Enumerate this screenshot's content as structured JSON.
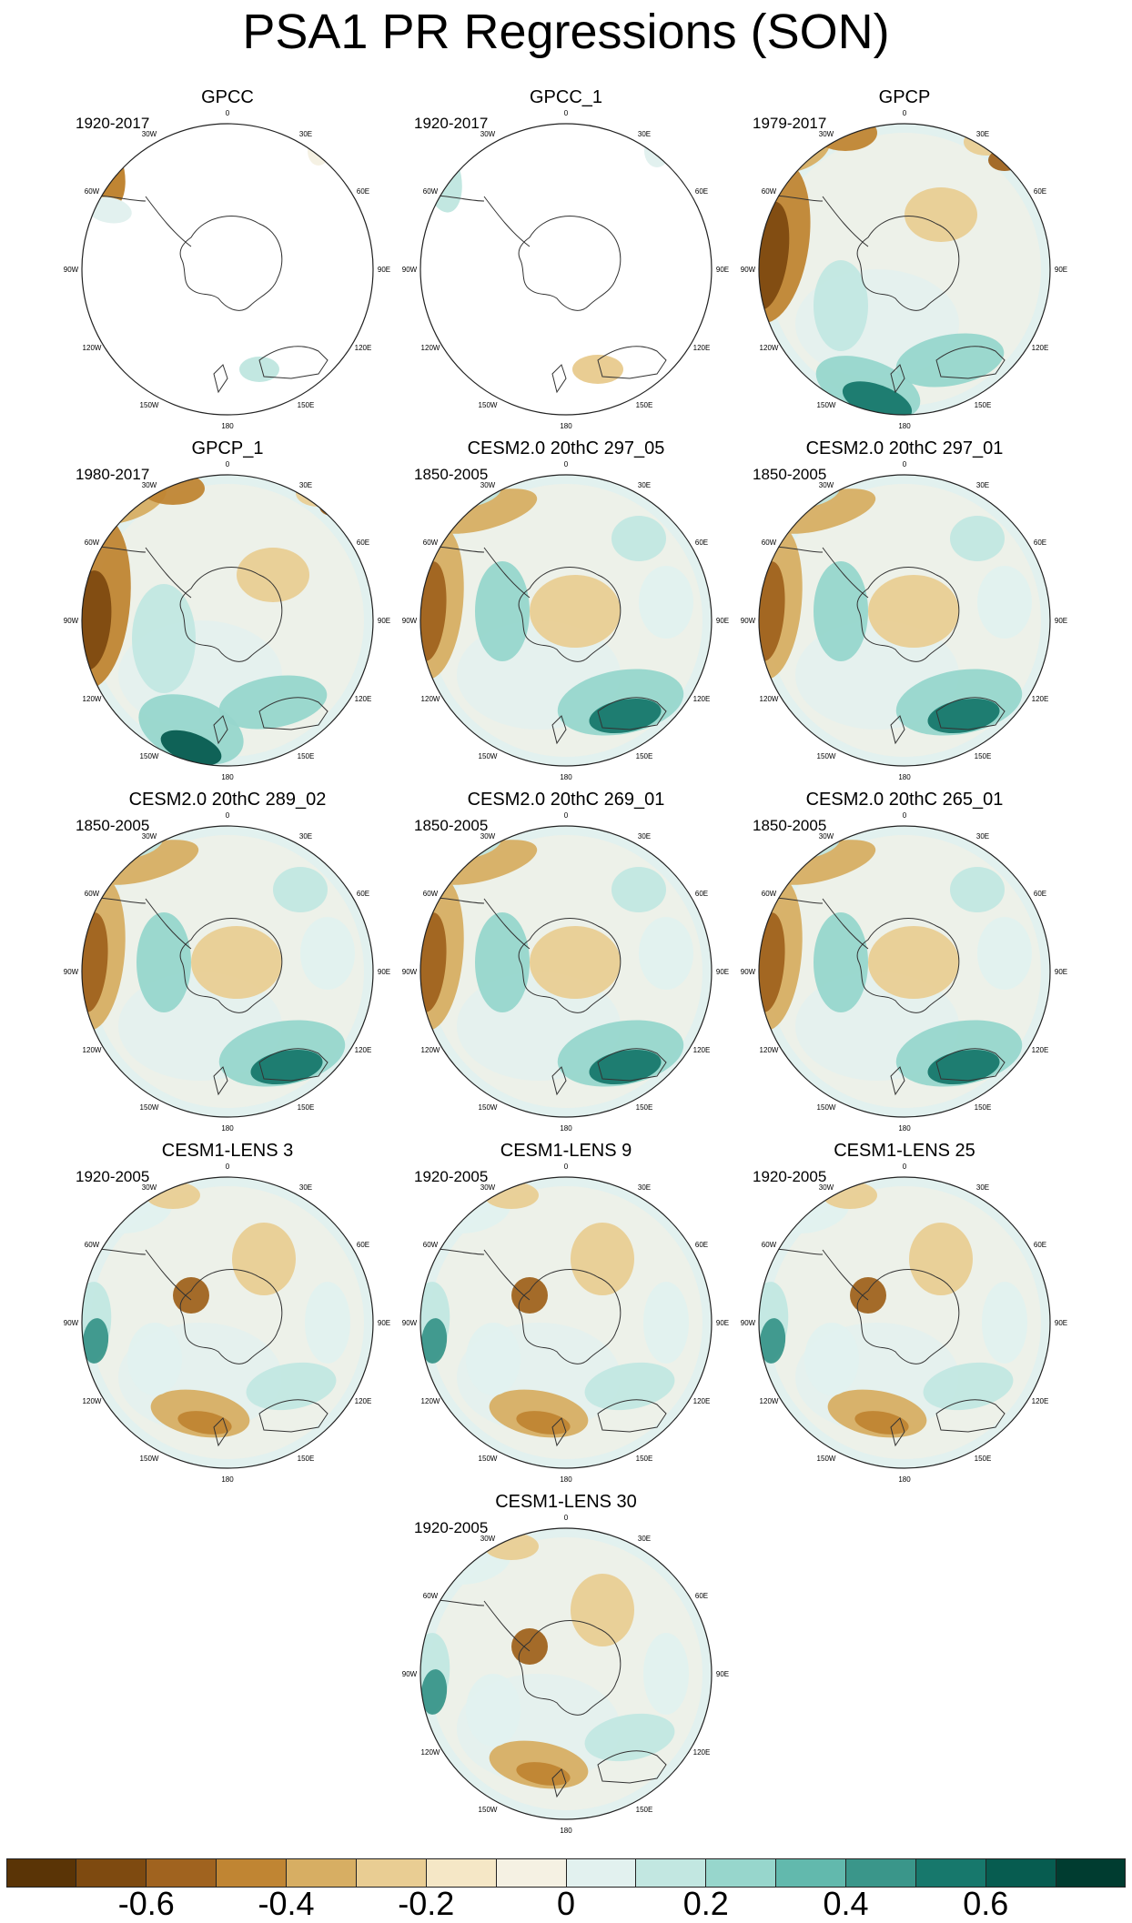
{
  "figure": {
    "title": "PSA1 PR Regressions (SON)"
  },
  "lon_labels": [
    "0",
    "30E",
    "60E",
    "90E",
    "120E",
    "150E",
    "180",
    "150W",
    "120W",
    "90W",
    "60W",
    "30W"
  ],
  "panels": [
    {
      "title": "GPCC",
      "period": "1920-2017",
      "style": "obs-sparse",
      "shading": "gpcc"
    },
    {
      "title": "GPCC_1",
      "period": "1920-2017",
      "style": "obs-sparse",
      "shading": "gpcc1"
    },
    {
      "title": "GPCP",
      "period": "1979-2017",
      "style": "full",
      "shading": "gpcp"
    },
    {
      "title": "GPCP_1",
      "period": "1980-2017",
      "style": "full",
      "shading": "gpcp1"
    },
    {
      "title": "CESM2.0 20thC 297_05",
      "period": "1850-2005",
      "style": "full",
      "shading": "model"
    },
    {
      "title": "CESM2.0 20thC 297_01",
      "period": "1850-2005",
      "style": "full",
      "shading": "model"
    },
    {
      "title": "CESM2.0 20thC 289_02",
      "period": "1850-2005",
      "style": "full",
      "shading": "model"
    },
    {
      "title": "CESM2.0 20thC 269_01",
      "period": "1850-2005",
      "style": "full",
      "shading": "model"
    },
    {
      "title": "CESM2.0 20thC 265_01",
      "period": "1850-2005",
      "style": "full",
      "shading": "model"
    },
    {
      "title": "CESM1-LENS 3",
      "period": "1920-2005",
      "style": "full",
      "shading": "lens"
    },
    {
      "title": "CESM1-LENS 9",
      "period": "1920-2005",
      "style": "full",
      "shading": "lens"
    },
    {
      "title": "CESM1-LENS 25",
      "period": "1920-2005",
      "style": "full",
      "shading": "lens"
    },
    {
      "title": "CESM1-LENS 30",
      "period": "1920-2005",
      "style": "full",
      "shading": "lens"
    }
  ],
  "colorbar": {
    "colors": [
      "#5a3406",
      "#7e4a10",
      "#a0631f",
      "#c08533",
      "#d7ae63",
      "#e9cd93",
      "#f5e7c6",
      "#f5f1e3",
      "#e2f1ef",
      "#c2e7e1",
      "#97d6cc",
      "#62b9ad",
      "#3a968a",
      "#17786c",
      "#075c50",
      "#003c30"
    ],
    "tick_labels": [
      "-0.6",
      "-0.4",
      "-0.2",
      "0",
      "0.2",
      "0.4",
      "0.6"
    ]
  }
}
